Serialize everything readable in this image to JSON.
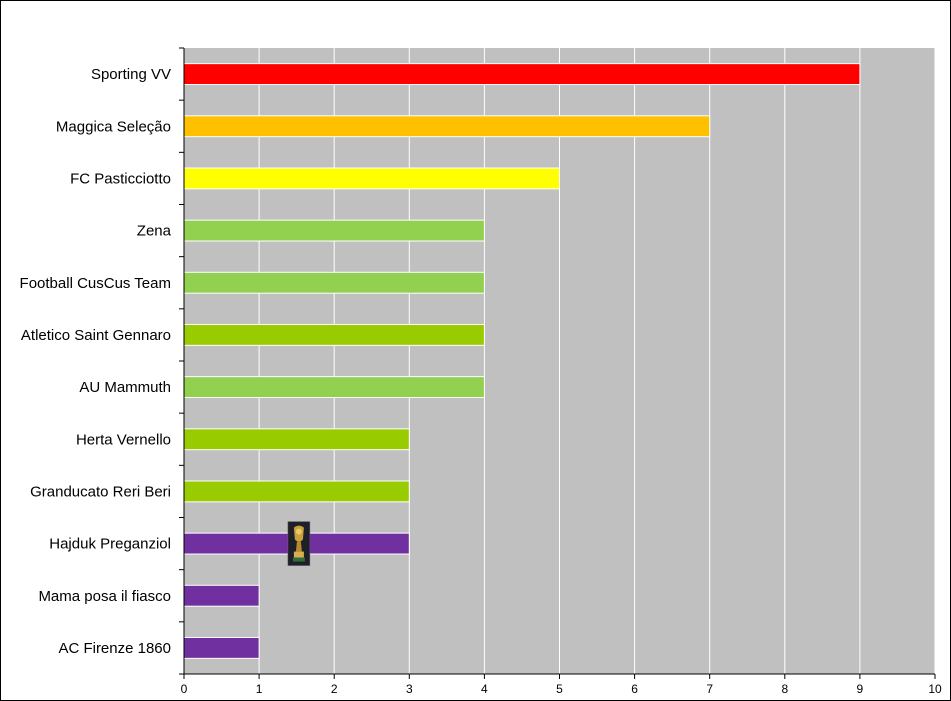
{
  "chart_data": {
    "type": "bar",
    "orientation": "horizontal",
    "categories": [
      "Sporting VV",
      "Maggica Seleção",
      "FC Pasticciotto",
      "Zena",
      "Football CusCus Team",
      "Atletico Saint Gennaro",
      "AU Mammuth",
      "Herta Vernello",
      "Granducato Reri Beri",
      "Hajduk Preganziol",
      "Mama posa il fiasco",
      "AC Firenze 1860"
    ],
    "values": [
      9,
      7,
      5,
      4,
      4,
      4,
      4,
      3,
      3,
      3,
      1,
      1
    ],
    "bar_colors": [
      "#ff0000",
      "#ffc000",
      "#ffff00",
      "#92d050",
      "#92d050",
      "#99cc00",
      "#92d050",
      "#99cc00",
      "#99cc00",
      "#7030a0",
      "#7030a0",
      "#7030a0"
    ],
    "xlim": [
      0,
      10
    ],
    "x_ticks": [
      0,
      1,
      2,
      3,
      4,
      5,
      6,
      7,
      8,
      9,
      10
    ],
    "grid": "vertical",
    "plot_background": "#c0c0c0",
    "annotations": [
      {
        "type": "trophy-icon",
        "category": "Hajduk Preganziol",
        "x_value": 1.53
      }
    ]
  }
}
